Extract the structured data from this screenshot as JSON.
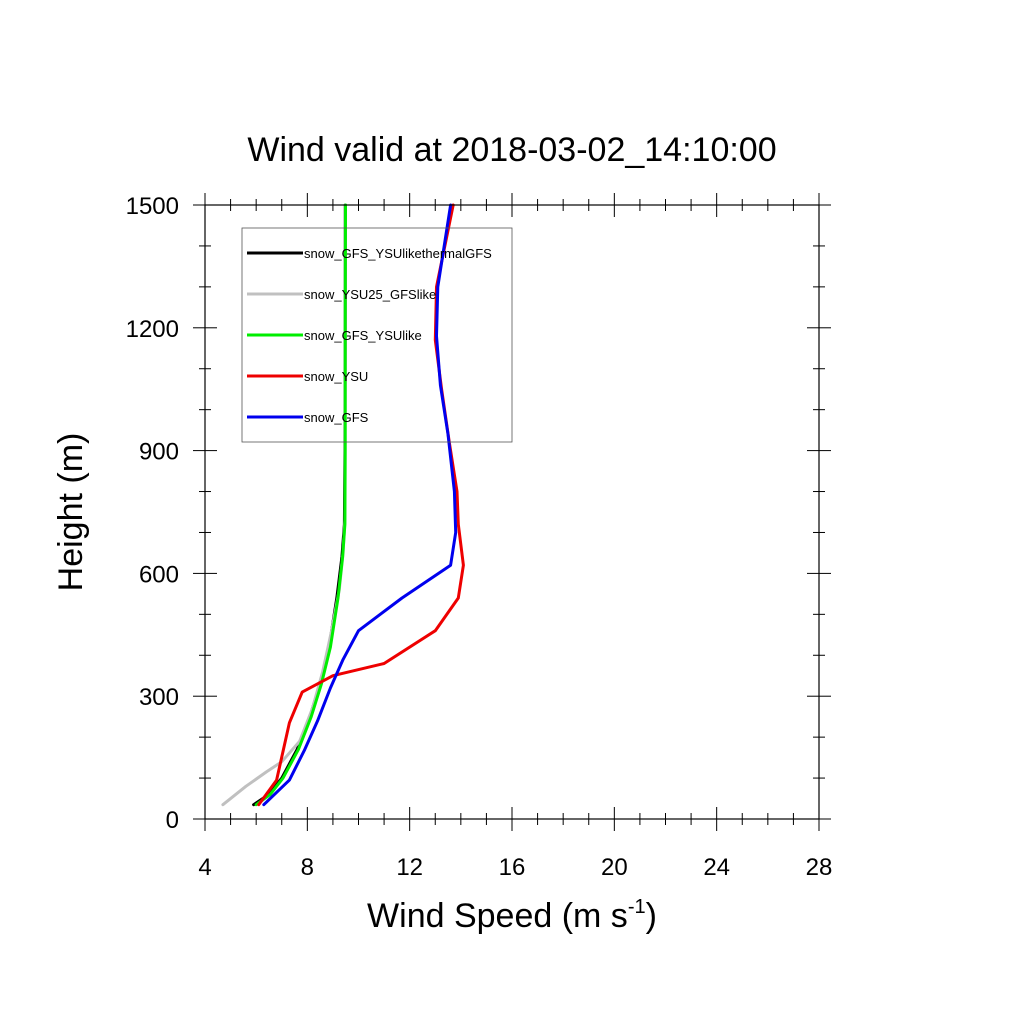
{
  "chart_data": {
    "type": "line",
    "title": "Wind valid at 2018-03-02_14:10:00",
    "xlabel": "Wind Speed (m s",
    "xlabel_superscript": "-1",
    "xlabel_suffix": ")",
    "ylabel": "Height (m)",
    "xlim": [
      4,
      28
    ],
    "ylim": [
      0,
      1500
    ],
    "xticks": [
      4,
      8,
      12,
      16,
      20,
      24,
      28
    ],
    "yticks": [
      0,
      300,
      600,
      900,
      1200,
      1500
    ],
    "xminor_step": 1,
    "yminor_step": 100,
    "grid": false,
    "legend_position": "top-left",
    "series": [
      {
        "name": "snow_GFS_YSUlikethermalGFS",
        "color": "#000000",
        "points": [
          [
            5.9,
            35
          ],
          [
            6.5,
            60
          ],
          [
            7.0,
            100
          ],
          [
            7.6,
            170
          ],
          [
            8.1,
            250
          ],
          [
            8.5,
            330
          ],
          [
            8.85,
            420
          ],
          [
            9.15,
            540
          ],
          [
            9.35,
            640
          ],
          [
            9.45,
            720
          ],
          [
            9.47,
            900
          ],
          [
            9.48,
            1200
          ],
          [
            9.48,
            1500
          ]
        ]
      },
      {
        "name": "snow_YSU25_GFSlike",
        "color": "#c0c0c0",
        "points": [
          [
            4.7,
            35
          ],
          [
            5.6,
            80
          ],
          [
            6.4,
            115
          ],
          [
            7.0,
            140
          ],
          [
            7.7,
            190
          ],
          [
            8.2,
            270
          ],
          [
            8.6,
            360
          ],
          [
            8.95,
            460
          ],
          [
            9.25,
            560
          ],
          [
            9.4,
            650
          ],
          [
            9.47,
            730
          ],
          [
            9.48,
            1000
          ],
          [
            9.48,
            1500
          ]
        ]
      },
      {
        "name": "snow_GFS_YSUlike",
        "color": "#00ee00",
        "points": [
          [
            6.0,
            35
          ],
          [
            6.55,
            60
          ],
          [
            7.05,
            100
          ],
          [
            7.65,
            170
          ],
          [
            8.15,
            250
          ],
          [
            8.55,
            330
          ],
          [
            8.9,
            420
          ],
          [
            9.2,
            540
          ],
          [
            9.38,
            640
          ],
          [
            9.47,
            720
          ],
          [
            9.48,
            900
          ],
          [
            9.48,
            1200
          ],
          [
            9.49,
            1500
          ]
        ]
      },
      {
        "name": "snow_YSU",
        "color": "#ee0000",
        "points": [
          [
            6.1,
            35
          ],
          [
            6.8,
            95
          ],
          [
            7.3,
            235
          ],
          [
            7.8,
            310
          ],
          [
            9.0,
            350
          ],
          [
            11.0,
            380
          ],
          [
            13.0,
            460
          ],
          [
            13.9,
            540
          ],
          [
            14.1,
            620
          ],
          [
            13.9,
            720
          ],
          [
            13.85,
            800
          ],
          [
            13.55,
            920
          ],
          [
            13.25,
            1050
          ],
          [
            13.0,
            1170
          ],
          [
            13.05,
            1300
          ],
          [
            13.7,
            1500
          ]
        ]
      },
      {
        "name": "snow_GFS",
        "color": "#0000ee",
        "points": [
          [
            6.3,
            35
          ],
          [
            7.3,
            95
          ],
          [
            7.9,
            170
          ],
          [
            8.4,
            240
          ],
          [
            8.9,
            320
          ],
          [
            9.4,
            390
          ],
          [
            10.0,
            460
          ],
          [
            11.7,
            540
          ],
          [
            13.6,
            620
          ],
          [
            13.8,
            700
          ],
          [
            13.75,
            800
          ],
          [
            13.5,
            940
          ],
          [
            13.2,
            1060
          ],
          [
            13.05,
            1180
          ],
          [
            13.1,
            1300
          ],
          [
            13.6,
            1500
          ]
        ]
      }
    ]
  }
}
